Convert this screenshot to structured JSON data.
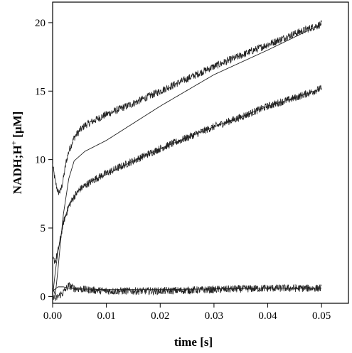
{
  "chart_data": {
    "type": "line",
    "title": "",
    "xlabel": "time [s]",
    "ylabel_main": "NADH;H",
    "ylabel_sup": "+",
    "ylabel_unit": " [µM]",
    "xlim": [
      0.0,
      0.055
    ],
    "ylim": [
      -0.5,
      21.5
    ],
    "x_ticks": [
      0.0,
      0.01,
      0.02,
      0.03,
      0.04,
      0.05
    ],
    "x_tick_labels": [
      "0.00",
      "0.01",
      "0.02",
      "0.03",
      "0.04",
      "0.05"
    ],
    "y_ticks": [
      0,
      5,
      10,
      15,
      20
    ],
    "y_tick_labels": [
      "0",
      "5",
      "10",
      "15",
      "20"
    ],
    "grid": false,
    "legend": "none",
    "line_color": "#222222",
    "series": [
      {
        "style": "noisy",
        "x": [
          0.0,
          0.0005,
          0.001,
          0.0015,
          0.002,
          0.0025,
          0.003,
          0.0035,
          0.004,
          0.005,
          0.006,
          0.008,
          0.01,
          0.015,
          0.02,
          0.025,
          0.03,
          0.035,
          0.04,
          0.045,
          0.05
        ],
        "y": [
          9.6,
          8.4,
          7.6,
          7.7,
          8.6,
          9.8,
          10.6,
          11.1,
          11.6,
          12.1,
          12.5,
          12.9,
          13.3,
          14.1,
          15.0,
          15.9,
          16.8,
          17.6,
          18.4,
          19.2,
          19.9
        ]
      },
      {
        "style": "smooth",
        "x": [
          0.0,
          0.0005,
          0.001,
          0.002,
          0.003,
          0.004,
          0.005,
          0.006,
          0.008,
          0.01,
          0.015,
          0.02,
          0.025,
          0.03,
          0.035,
          0.04,
          0.045,
          0.05
        ],
        "y": [
          0.0,
          1.8,
          3.3,
          5.4,
          6.6,
          7.3,
          7.8,
          8.1,
          8.6,
          8.9,
          9.9,
          10.8,
          11.6,
          12.4,
          13.1,
          13.9,
          14.5,
          15.2
        ]
      },
      {
        "style": "noisy",
        "x": [
          0.0,
          0.0005,
          0.001,
          0.002,
          0.003,
          0.004,
          0.005,
          0.006,
          0.008,
          0.01,
          0.015,
          0.02,
          0.025,
          0.03,
          0.035,
          0.04,
          0.045,
          0.05
        ],
        "y": [
          2.7,
          2.6,
          3.3,
          5.4,
          6.6,
          7.3,
          7.8,
          8.1,
          8.6,
          9.0,
          9.9,
          10.8,
          11.6,
          12.4,
          13.1,
          13.9,
          14.5,
          15.2
        ]
      },
      {
        "style": "smooth",
        "x": [
          0.0,
          0.0005,
          0.001,
          0.0015,
          0.002,
          0.003,
          0.004,
          0.006,
          0.01,
          0.02,
          0.03,
          0.04,
          0.05
        ],
        "y": [
          0.7,
          0.1,
          2.0,
          4.1,
          6.0,
          8.6,
          9.9,
          10.6,
          11.4,
          13.9,
          16.2,
          18.0,
          19.9
        ]
      },
      {
        "style": "noisy",
        "x": [
          0.0,
          0.0005,
          0.001,
          0.002,
          0.003,
          0.004,
          0.006,
          0.01,
          0.02,
          0.03,
          0.04,
          0.05
        ],
        "y": [
          0.1,
          -0.2,
          0.0,
          0.3,
          0.8,
          0.6,
          0.5,
          0.4,
          0.4,
          0.5,
          0.6,
          0.6
        ]
      },
      {
        "style": "smooth",
        "x": [
          0.0,
          0.001,
          0.002,
          0.003,
          0.005,
          0.01,
          0.02,
          0.03,
          0.04,
          0.05
        ],
        "y": [
          0.4,
          0.7,
          0.7,
          0.6,
          0.55,
          0.5,
          0.5,
          0.55,
          0.6,
          0.6
        ]
      }
    ]
  }
}
